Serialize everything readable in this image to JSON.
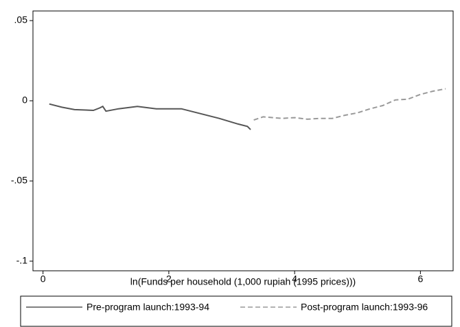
{
  "chart_data": {
    "type": "line",
    "x_label": "ln(Funds per household (1,000 rupiah (1995 prices)))",
    "xlim": [
      -0.16,
      6.52
    ],
    "xticks": [
      0,
      2,
      4,
      6
    ],
    "ylim": [
      -0.106,
      0.056
    ],
    "yticks": [
      {
        "value": -0.1,
        "label": "-.1"
      },
      {
        "value": -0.05,
        "label": "-.05"
      },
      0,
      {
        "value": 0.05,
        "label": ".05"
      }
    ],
    "series": [
      {
        "name": "Pre-program launch:1993-94",
        "color": "#555555",
        "dash": false,
        "x": [
          0.1,
          0.3,
          0.5,
          0.8,
          0.9,
          0.95,
          1.0,
          1.2,
          1.5,
          1.8,
          2.0,
          2.2,
          2.5,
          2.8,
          3.1,
          3.25,
          3.3
        ],
        "values": [
          -0.002,
          -0.004,
          -0.0055,
          -0.006,
          -0.0045,
          -0.0035,
          -0.0065,
          -0.005,
          -0.0035,
          -0.005,
          -0.005,
          -0.005,
          -0.008,
          -0.011,
          -0.0145,
          -0.016,
          -0.018
        ]
      },
      {
        "name": "Post-program launch:1993-96",
        "color": "#999999",
        "dash": true,
        "x": [
          3.35,
          3.5,
          3.8,
          4.0,
          4.2,
          4.4,
          4.6,
          4.8,
          5.0,
          5.2,
          5.4,
          5.6,
          5.8,
          6.0,
          6.2,
          6.4
        ],
        "values": [
          -0.012,
          -0.01,
          -0.011,
          -0.0105,
          -0.0115,
          -0.011,
          -0.011,
          -0.009,
          -0.0075,
          -0.005,
          -0.003,
          0.0005,
          0.001,
          0.004,
          0.006,
          0.0075
        ]
      }
    ]
  }
}
